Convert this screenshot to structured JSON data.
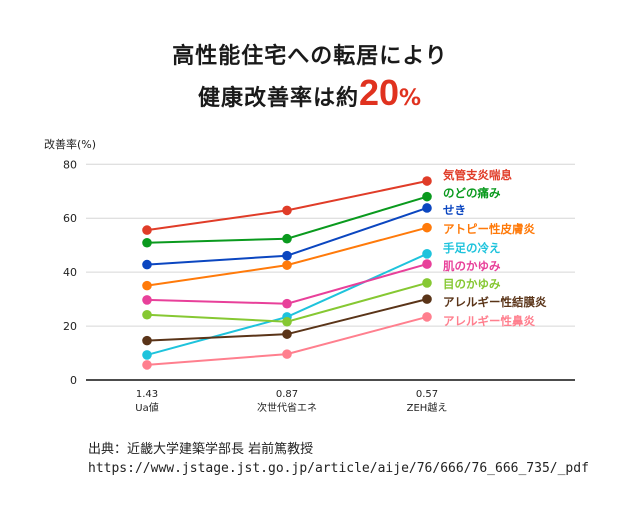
{
  "title": {
    "line1": "高性能住宅への転居により",
    "line2_prefix": "健康改善率は約",
    "line2_number": "20",
    "line2_unit": "%",
    "accent": "#e0321f"
  },
  "chart_data": {
    "type": "line",
    "ylabel": "改善率(%)",
    "ylim": [
      0,
      80
    ],
    "yticks": [
      0,
      20,
      40,
      60,
      80
    ],
    "grid": true,
    "legend": "right",
    "categories": [
      {
        "value": "1.43",
        "label": "Ua値"
      },
      {
        "value": "0.87",
        "label": "次世代省エネ"
      },
      {
        "value": "0.57",
        "label": "ZEH越え"
      }
    ],
    "series": [
      {
        "name": "気管支炎喘息",
        "color": "#e03c28",
        "values": [
          55.6,
          62.9,
          73.8
        ]
      },
      {
        "name": "のどの痛み",
        "color": "#0a9a1e",
        "values": [
          50.9,
          52.4,
          68.0
        ]
      },
      {
        "name": "せき",
        "color": "#0b46c0",
        "values": [
          42.8,
          46.1,
          63.8
        ]
      },
      {
        "name": "アトピー性皮膚炎",
        "color": "#ff7a0a",
        "values": [
          35.0,
          42.6,
          56.5
        ]
      },
      {
        "name": "手足の冷え",
        "color": "#1ec3dc",
        "values": [
          9.3,
          23.4,
          46.8
        ]
      },
      {
        "name": "肌のかゆみ",
        "color": "#e8409a",
        "values": [
          29.7,
          28.3,
          43.0
        ]
      },
      {
        "name": "目のかゆみ",
        "color": "#86c832",
        "values": [
          24.2,
          21.6,
          36.0
        ]
      },
      {
        "name": "アレルギー性結膜炎",
        "color": "#5a3418",
        "values": [
          14.6,
          17.0,
          30.0
        ]
      },
      {
        "name": "アレルギー性鼻炎",
        "color": "#ff7f8e",
        "values": [
          5.6,
          9.6,
          23.4
        ]
      }
    ]
  },
  "source": {
    "line1": "出典：近畿大学建築学部長 岩前篤教授",
    "line2": "https://www.jstage.jst.go.jp/article/aije/76/666/76_666_735/_pdf"
  }
}
